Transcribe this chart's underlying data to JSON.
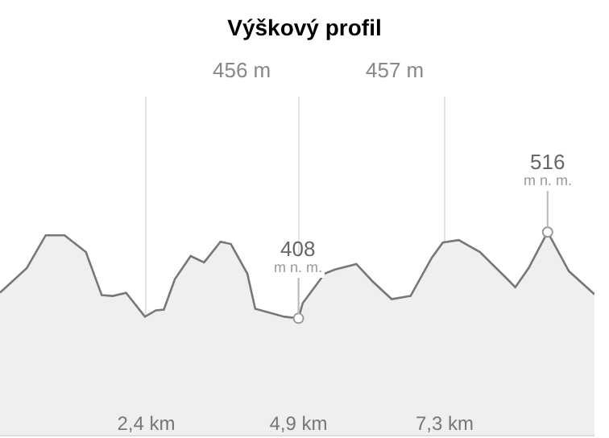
{
  "chart_data": {
    "type": "area",
    "title": "Výškový profil",
    "x": [
      0.0,
      0.44,
      0.75,
      1.06,
      1.41,
      1.67,
      1.85,
      2.07,
      2.38,
      2.56,
      2.69,
      2.87,
      3.13,
      3.35,
      3.62,
      3.79,
      4.06,
      4.19,
      4.67,
      4.9,
      4.97,
      5.33,
      5.5,
      5.85,
      6.12,
      6.43,
      6.74,
      7.09,
      7.27,
      7.53,
      7.88,
      8.33,
      8.46,
      8.68,
      8.99,
      9.34,
      9.76
    ],
    "series": [
      {
        "color": "#777777",
        "values": [
          440,
          471,
          512,
          512,
          491,
          437,
          436,
          440,
          410,
          418,
          419,
          457,
          486,
          478,
          504,
          501,
          464,
          420,
          410,
          408,
          427,
          464,
          469,
          476,
          454,
          432,
          436,
          484,
          503,
          506,
          491,
          457,
          447,
          471,
          516,
          467,
          438
        ],
        "value_labels": [
          null,
          null,
          null,
          null,
          null,
          null,
          null,
          null,
          null,
          null,
          null,
          null,
          null,
          null,
          null,
          null,
          null,
          null,
          null,
          "408",
          null,
          null,
          null,
          null,
          null,
          null,
          null,
          null,
          null,
          null,
          null,
          null,
          null,
          null,
          "516",
          null,
          null
        ]
      }
    ],
    "xlim": [
      0,
      9.76
    ],
    "xticks": [
      {
        "value": 2.4,
        "label": "2,4 km"
      },
      {
        "value": 4.9,
        "label": "4,9 km"
      },
      {
        "value": 7.3,
        "label": "7,3 km"
      }
    ],
    "tick_labels": "x",
    "grid": "x",
    "annotations": [
      "456 m",
      "457 m",
      "m n. m.",
      "m n. m."
    ]
  }
}
